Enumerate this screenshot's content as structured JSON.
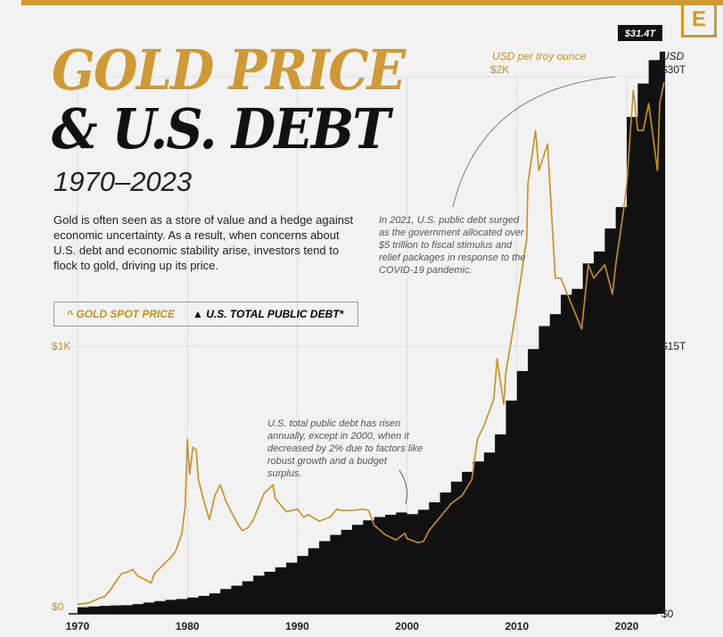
{
  "brand": {
    "logo_letter": "E"
  },
  "title": {
    "line1": "GOLD PRICE",
    "line2": "& U.S. DEBT",
    "years": "1970–2023"
  },
  "description": "Gold is often seen as a store of value and a hedge against economic uncertainty. As a result, when concerns about U.S. debt and economic stability arise, investors tend to flock to gold, driving up its price.",
  "legend": {
    "gold": "GOLD SPOT PRICE",
    "debt": "U.S. TOTAL PUBLIC DEBT*",
    "gold_icon": "caret-up-icon",
    "debt_icon": "triangle-icon"
  },
  "annotations": {
    "a2021": "In 2021, U.S. public debt surged as the government allocated over $5 trillion to fiscal stimulus and relief packages in response to the COVID-19 pandemic.",
    "a2000": "U.S. total public debt has risen annually, except in 2000, when it decreased by 2% due to factors like robust growth and a budget surplus.",
    "callout": "$31.4T"
  },
  "colors": {
    "gold": "#c9911c",
    "debt": "#111111",
    "accent": "#d29a2a"
  },
  "chart_data": {
    "type": "line+area",
    "left_axis": {
      "label": "USD per troy ounce",
      "ticks": [
        "$0",
        "$1K",
        "$2K"
      ],
      "range": [
        0,
        2000
      ]
    },
    "right_axis": {
      "label": "USD",
      "ticks": [
        "$0",
        "$15T",
        "$30T"
      ],
      "range": [
        0,
        30
      ]
    },
    "x_ticks": [
      "1970",
      "1980",
      "1990",
      "2000",
      "2010",
      "2020"
    ],
    "xlim": [
      1970,
      2023.5
    ],
    "series": [
      {
        "name": "U.S. Total Public Debt (trillions USD)",
        "type": "step-area",
        "x": [
          1970,
          1971,
          1972,
          1973,
          1974,
          1975,
          1976,
          1977,
          1978,
          1979,
          1980,
          1981,
          1982,
          1983,
          1984,
          1985,
          1986,
          1987,
          1988,
          1989,
          1990,
          1991,
          1992,
          1993,
          1994,
          1995,
          1996,
          1997,
          1998,
          1999,
          2000,
          2001,
          2002,
          2003,
          2004,
          2005,
          2006,
          2007,
          2008,
          2009,
          2010,
          2011,
          2012,
          2013,
          2014,
          2015,
          2016,
          2017,
          2018,
          2019,
          2020,
          2021,
          2022,
          2023
        ],
        "y": [
          0.37,
          0.41,
          0.44,
          0.47,
          0.48,
          0.54,
          0.63,
          0.71,
          0.78,
          0.83,
          0.91,
          1.0,
          1.14,
          1.38,
          1.57,
          1.82,
          2.13,
          2.35,
          2.6,
          2.86,
          3.23,
          3.66,
          4.06,
          4.41,
          4.69,
          4.97,
          5.22,
          5.41,
          5.53,
          5.66,
          5.57,
          5.81,
          6.23,
          6.78,
          7.38,
          7.93,
          8.51,
          9.01,
          10.02,
          11.91,
          13.56,
          14.79,
          16.07,
          16.74,
          17.82,
          18.15,
          19.57,
          20.24,
          21.52,
          22.72,
          27.75,
          29.62,
          30.93,
          31.4
        ]
      },
      {
        "name": "Gold Spot Price (USD/oz)",
        "type": "line",
        "x": [
          1970,
          1971,
          1972,
          1972.5,
          1973,
          1973.5,
          1974,
          1974.5,
          1975,
          1975.5,
          1976,
          1976.7,
          1977,
          1978,
          1978.7,
          1979,
          1979.5,
          1979.8,
          1980,
          1980.2,
          1980.5,
          1980.8,
          1981,
          1981.5,
          1982,
          1982.5,
          1983,
          1983.5,
          1984,
          1984.5,
          1985,
          1985.5,
          1986,
          1987,
          1987.8,
          1988,
          1989,
          1990,
          1990.6,
          1991,
          1992,
          1993,
          1993.6,
          1994,
          1995,
          1996,
          1996.5,
          1997,
          1998,
          1999,
          1999.8,
          2000,
          2001,
          2001.5,
          2002,
          2003,
          2004,
          2005,
          2005.9,
          2006.4,
          2007,
          2007.9,
          2008.2,
          2008.8,
          2009,
          2009.9,
          2010,
          2010.9,
          2011,
          2011.7,
          2012,
          2012.8,
          2013,
          2013.5,
          2014,
          2015,
          2015.9,
          2016.5,
          2017,
          2018,
          2018.7,
          2019,
          2019.7,
          2020,
          2020.6,
          2021,
          2021.5,
          2022,
          2022.8,
          2023,
          2023.4
        ],
        "y": [
          35,
          40,
          58,
          65,
          90,
          120,
          150,
          155,
          165,
          140,
          130,
          115,
          150,
          190,
          220,
          240,
          300,
          400,
          650,
          520,
          620,
          610,
          500,
          420,
          350,
          440,
          480,
          420,
          380,
          340,
          310,
          320,
          350,
          450,
          480,
          430,
          380,
          390,
          360,
          370,
          345,
          360,
          390,
          385,
          385,
          390,
          385,
          330,
          295,
          275,
          300,
          280,
          265,
          270,
          310,
          360,
          410,
          440,
          500,
          650,
          700,
          800,
          950,
          780,
          900,
          1120,
          1150,
          1400,
          1600,
          1800,
          1650,
          1750,
          1600,
          1250,
          1250,
          1150,
          1060,
          1300,
          1250,
          1300,
          1190,
          1300,
          1500,
          1600,
          1950,
          1800,
          1800,
          1900,
          1650,
          1900,
          1980
        ]
      }
    ]
  }
}
